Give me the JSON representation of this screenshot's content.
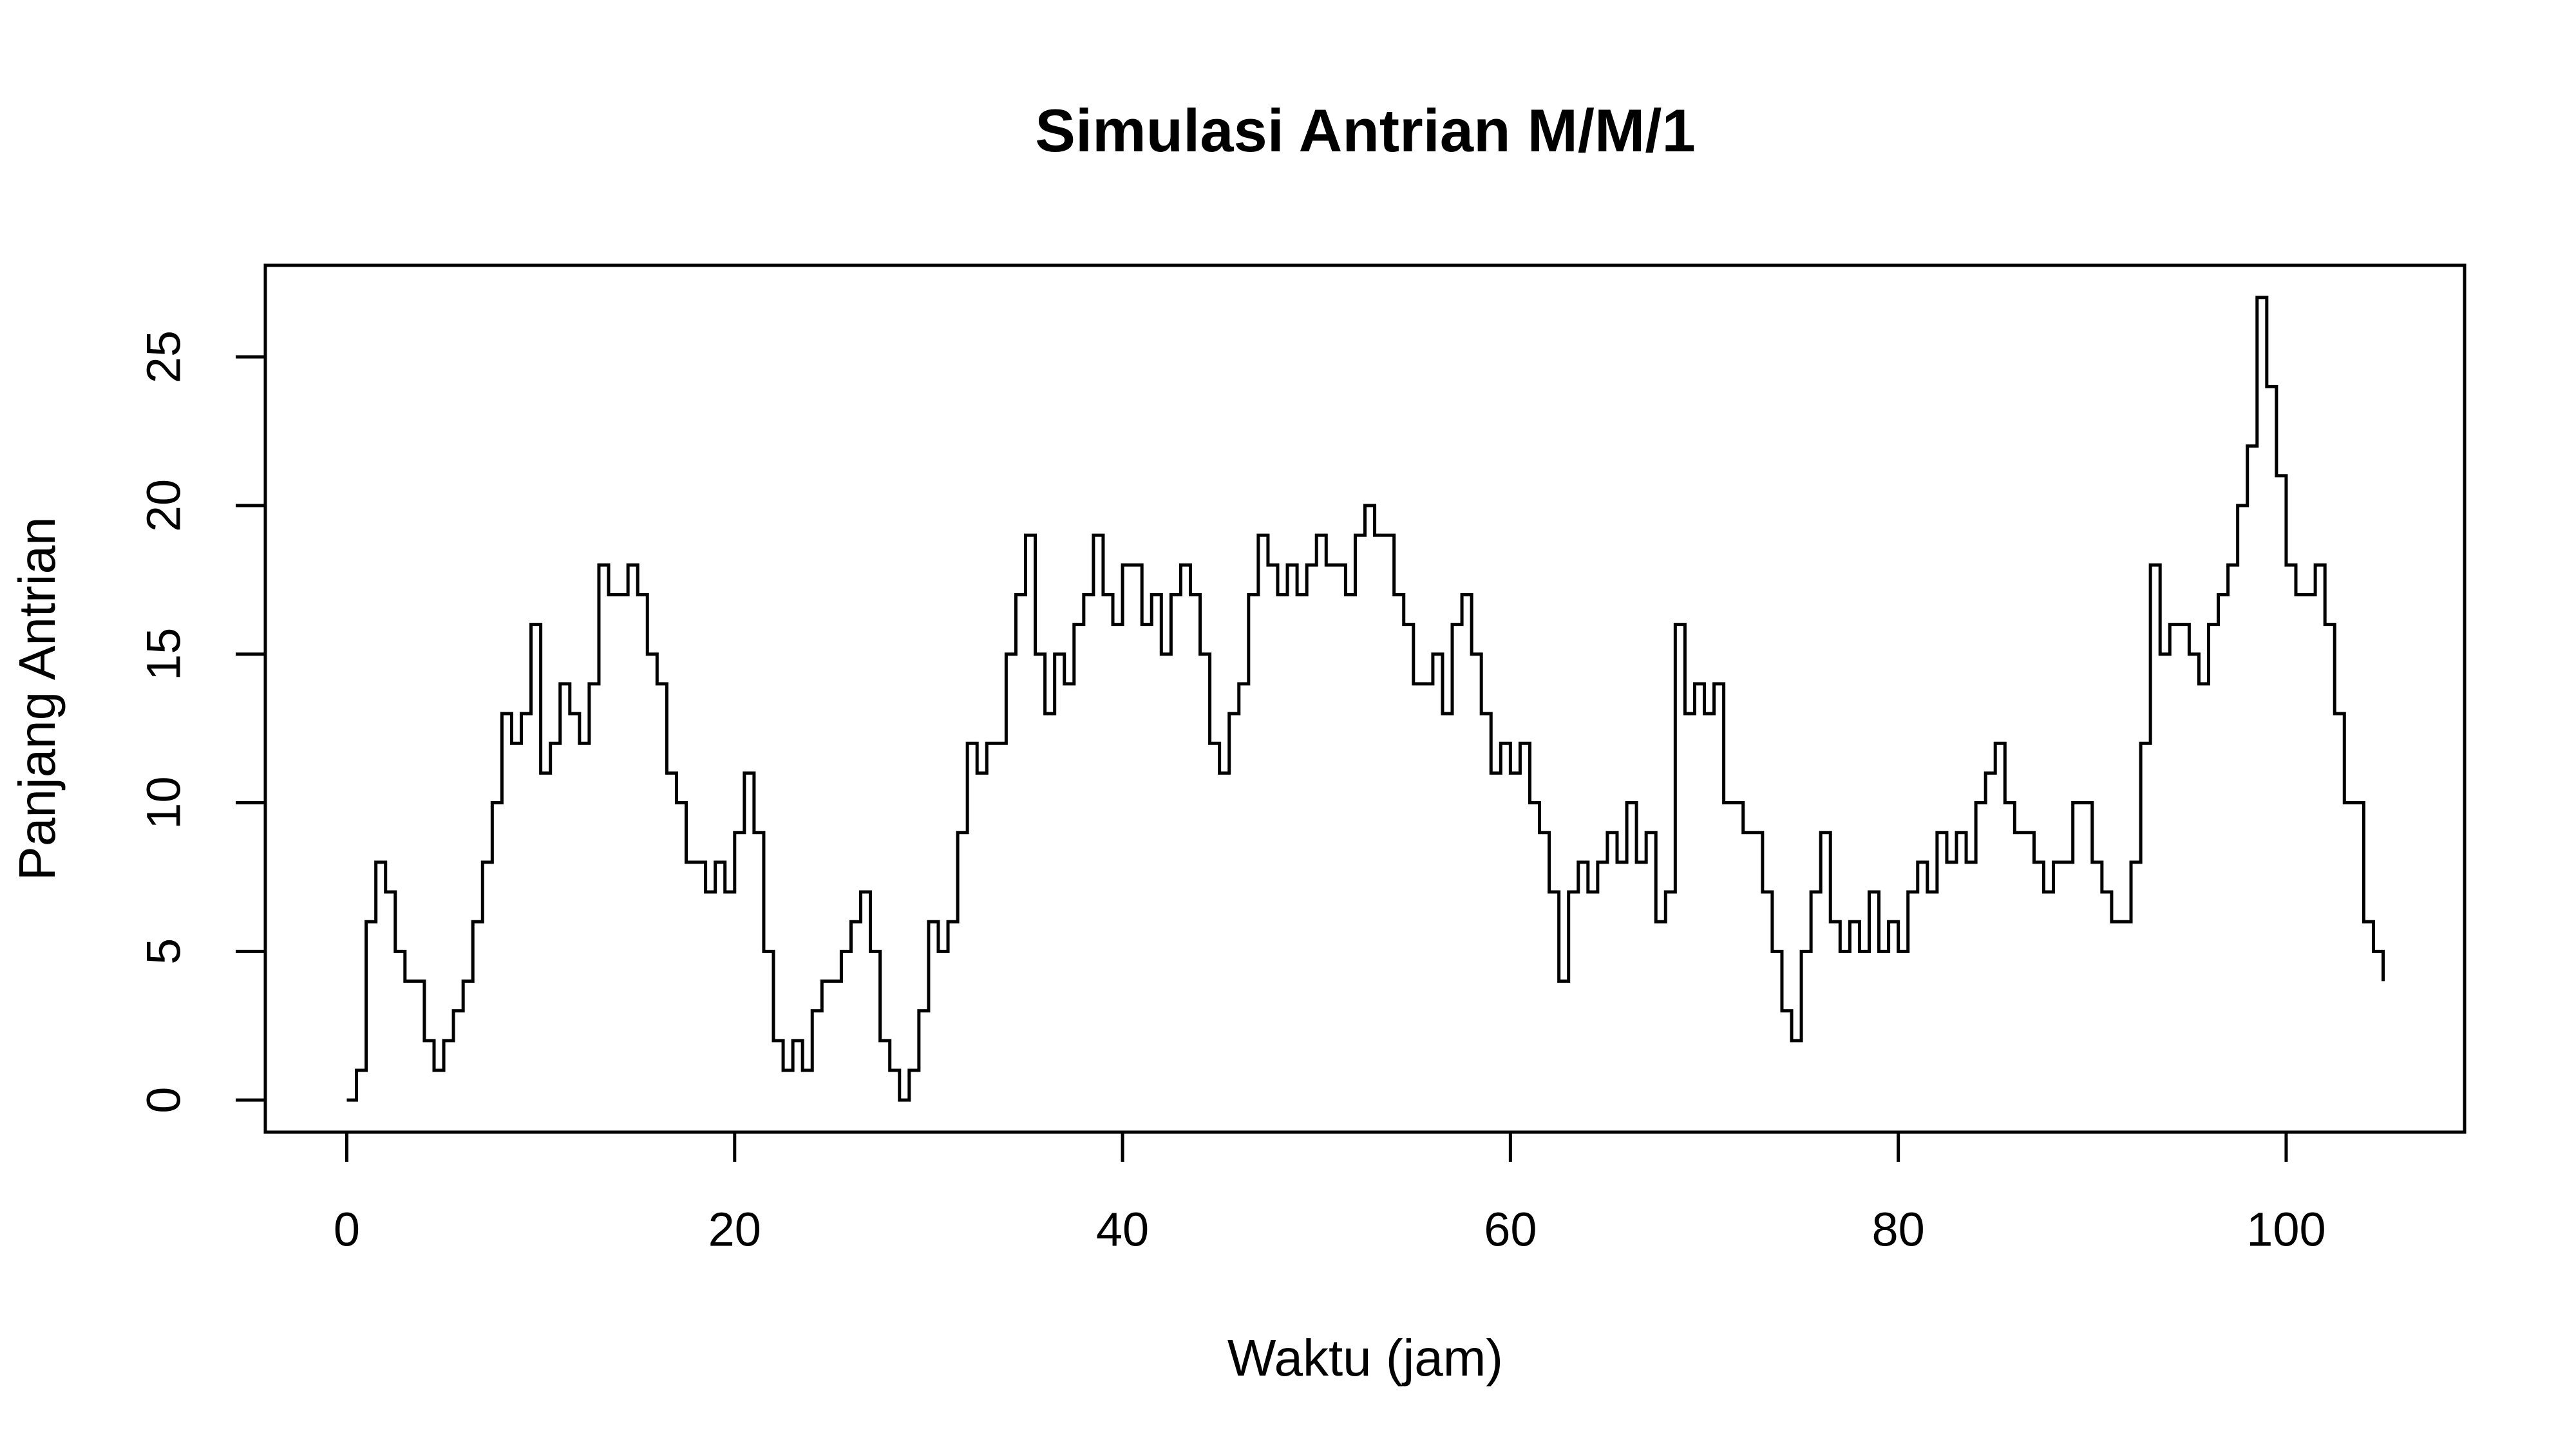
{
  "chart_data": {
    "type": "step",
    "title": "Simulasi Antrian M/M/1",
    "xlabel": "Waktu (jam)",
    "ylabel": "Panjang Antrian",
    "color": "#000000",
    "xlim": [
      -4.2,
      109.2
    ],
    "ylim": [
      -1.08,
      28.08
    ],
    "xticks": [
      0,
      20,
      40,
      60,
      80,
      100
    ],
    "yticks": [
      0,
      5,
      10,
      15,
      20,
      25
    ],
    "grid": false,
    "x": [
      0,
      0.5,
      1,
      1.5,
      2,
      2.5,
      3,
      3.5,
      4,
      4.5,
      5,
      5.5,
      6,
      6.5,
      7,
      7.5,
      8,
      8.5,
      9,
      9.5,
      10,
      10.5,
      11,
      11.5,
      12,
      12.5,
      13,
      13.5,
      14,
      14.5,
      15,
      15.5,
      16,
      16.5,
      17,
      17.5,
      18,
      18.5,
      19,
      19.5,
      20,
      20.5,
      21,
      21.5,
      22,
      22.5,
      23,
      23.5,
      24,
      24.5,
      25,
      25.5,
      26,
      26.5,
      27,
      27.5,
      28,
      28.5,
      29,
      29.5,
      30,
      30.5,
      31,
      31.5,
      32,
      32.5,
      33,
      33.5,
      34,
      34.5,
      35,
      35.5,
      36,
      36.5,
      37,
      37.5,
      38,
      38.5,
      39,
      39.5,
      40,
      40.5,
      41,
      41.5,
      42,
      42.5,
      43,
      43.5,
      44,
      44.5,
      45,
      45.5,
      46,
      46.5,
      47,
      47.5,
      48,
      48.5,
      49,
      49.5,
      50,
      50.5,
      51,
      51.5,
      52,
      52.5,
      53,
      53.5,
      54,
      54.5,
      55,
      55.5,
      56,
      56.5,
      57,
      57.5,
      58,
      58.5,
      59,
      59.5,
      60,
      60.5,
      61,
      61.5,
      62,
      62.5,
      63,
      63.5,
      64,
      64.5,
      65,
      65.5,
      66,
      66.5,
      67,
      67.5,
      68,
      68.5,
      69,
      69.5,
      70,
      70.5,
      71,
      71.5,
      72,
      72.5,
      73,
      73.5,
      74,
      74.5,
      75,
      75.5,
      76,
      76.5,
      77,
      77.5,
      78,
      78.5,
      79,
      79.5,
      80,
      80.5,
      81,
      81.5,
      82,
      82.5,
      83,
      83.5,
      84,
      84.5,
      85,
      85.5,
      86,
      86.5,
      87,
      87.5,
      88,
      88.5,
      89,
      89.5,
      90,
      90.5,
      91,
      91.5,
      92,
      92.5,
      93,
      93.5,
      94,
      94.5,
      95,
      95.5,
      96,
      96.5,
      97,
      97.5,
      98,
      98.5,
      99,
      99.5,
      100,
      100.5,
      101,
      101.5,
      102,
      102.5,
      103,
      103.5,
      104,
      104.5,
      105
    ],
    "values": [
      0,
      1,
      6,
      8,
      7,
      5,
      4,
      4,
      2,
      1,
      2,
      3,
      4,
      6,
      8,
      10,
      13,
      12,
      13,
      16,
      11,
      12,
      14,
      13,
      12,
      14,
      18,
      17,
      17,
      18,
      17,
      15,
      14,
      11,
      10,
      8,
      8,
      7,
      8,
      7,
      9,
      11,
      9,
      5,
      2,
      1,
      2,
      1,
      3,
      4,
      4,
      5,
      6,
      7,
      5,
      2,
      1,
      0,
      1,
      3,
      6,
      5,
      6,
      9,
      12,
      11,
      12,
      12,
      15,
      17,
      19,
      15,
      13,
      15,
      14,
      16,
      17,
      19,
      17,
      16,
      18,
      18,
      16,
      17,
      15,
      17,
      18,
      17,
      15,
      12,
      11,
      13,
      14,
      17,
      19,
      18,
      17,
      18,
      17,
      18,
      19,
      18,
      18,
      17,
      19,
      20,
      19,
      19,
      17,
      16,
      14,
      14,
      15,
      13,
      16,
      17,
      15,
      13,
      11,
      12,
      11,
      12,
      10,
      9,
      7,
      4,
      7,
      8,
      7,
      8,
      9,
      8,
      10,
      8,
      9,
      6,
      7,
      16,
      13,
      14,
      13,
      14,
      10,
      10,
      9,
      9,
      7,
      5,
      3,
      2,
      5,
      7,
      9,
      6,
      5,
      6,
      5,
      7,
      5,
      6,
      5,
      7,
      8,
      7,
      9,
      8,
      9,
      8,
      10,
      11,
      12,
      10,
      9,
      9,
      8,
      7,
      8,
      8,
      10,
      10,
      8,
      7,
      6,
      6,
      8,
      12,
      18,
      15,
      16,
      16,
      15,
      14,
      16,
      17,
      18,
      20,
      22,
      27,
      24,
      21,
      18,
      17,
      17,
      18,
      16,
      13,
      10,
      10,
      6,
      5,
      4
    ]
  }
}
